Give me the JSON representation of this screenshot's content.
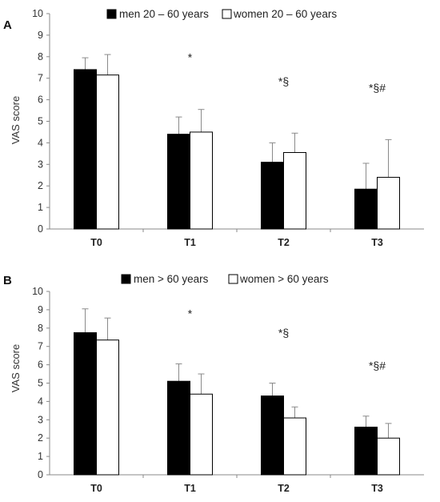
{
  "chart_data": [
    {
      "type": "bar",
      "panel": "A",
      "categories": [
        "T0",
        "T1",
        "T2",
        "T3"
      ],
      "series": [
        {
          "name": "men 20 – 60 years",
          "color": "#000000",
          "values": [
            7.4,
            4.4,
            3.1,
            1.85
          ],
          "err_upper": [
            7.95,
            5.2,
            4.0,
            3.05
          ]
        },
        {
          "name": "women 20 – 60 years",
          "color": "#ffffff",
          "values": [
            7.15,
            4.5,
            3.55,
            2.4
          ],
          "err_upper": [
            8.1,
            5.55,
            4.45,
            4.15
          ]
        }
      ],
      "annotations": [
        "",
        "*",
        "*§",
        "*§#"
      ],
      "ylabel": "VAS score",
      "ylim": [
        0,
        10
      ],
      "yticks": [
        "0",
        "1",
        "2",
        "3",
        "4",
        "5",
        "6",
        "7",
        "8",
        "9",
        "10"
      ],
      "legend": "top",
      "grid": false
    },
    {
      "type": "bar",
      "panel": "B",
      "categories": [
        "T0",
        "T1",
        "T2",
        "T3"
      ],
      "series": [
        {
          "name": "men > 60 years",
          "color": "#000000",
          "values": [
            7.75,
            5.1,
            4.3,
            2.6
          ],
          "err_upper": [
            9.05,
            6.05,
            5.0,
            3.2
          ]
        },
        {
          "name": "women > 60 years",
          "color": "#ffffff",
          "values": [
            7.35,
            4.4,
            3.1,
            2.0
          ],
          "err_upper": [
            8.55,
            5.5,
            3.7,
            2.8
          ]
        }
      ],
      "annotations": [
        "",
        "*",
        "*§",
        "*§#"
      ],
      "ylabel": "VAS score",
      "ylim": [
        0,
        10
      ],
      "yticks": [
        "0",
        "1",
        "2",
        "3",
        "4",
        "5",
        "6",
        "7",
        "8",
        "9",
        "10"
      ],
      "legend": "top",
      "grid": false
    }
  ]
}
